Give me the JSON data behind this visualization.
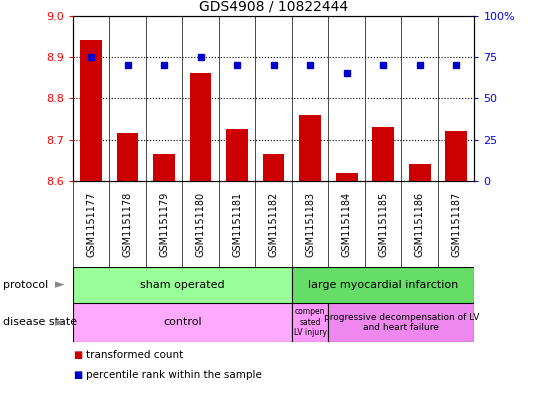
{
  "title": "GDS4908 / 10822444",
  "samples": [
    "GSM1151177",
    "GSM1151178",
    "GSM1151179",
    "GSM1151180",
    "GSM1151181",
    "GSM1151182",
    "GSM1151183",
    "GSM1151184",
    "GSM1151185",
    "GSM1151186",
    "GSM1151187"
  ],
  "bar_values": [
    8.94,
    8.715,
    8.665,
    8.86,
    8.725,
    8.665,
    8.76,
    8.62,
    8.73,
    8.64,
    8.72
  ],
  "bar_base": 8.6,
  "percentile_values": [
    75,
    70,
    70,
    75,
    70,
    70,
    70,
    65,
    70,
    70,
    70
  ],
  "bar_color": "#cc0000",
  "dot_color": "#0000cc",
  "ylim_left": [
    8.6,
    9.0
  ],
  "ylim_right": [
    0,
    100
  ],
  "yticks_left": [
    8.6,
    8.7,
    8.8,
    8.9,
    9.0
  ],
  "yticks_right": [
    0,
    25,
    50,
    75,
    100
  ],
  "ytick_labels_right": [
    "0",
    "25",
    "50",
    "75",
    "100%"
  ],
  "sham_color": "#99ff99",
  "lmi_color": "#66dd66",
  "control_color": "#ffaaff",
  "comp_color": "#ff99ff",
  "prog_color": "#ee88ee",
  "label_row1": "protocol",
  "label_row2": "disease state",
  "legend_items": [
    "transformed count",
    "percentile rank within the sample"
  ],
  "legend_colors": [
    "#cc0000",
    "#0000cc"
  ],
  "sham_n": 6,
  "lmi_n": 5
}
